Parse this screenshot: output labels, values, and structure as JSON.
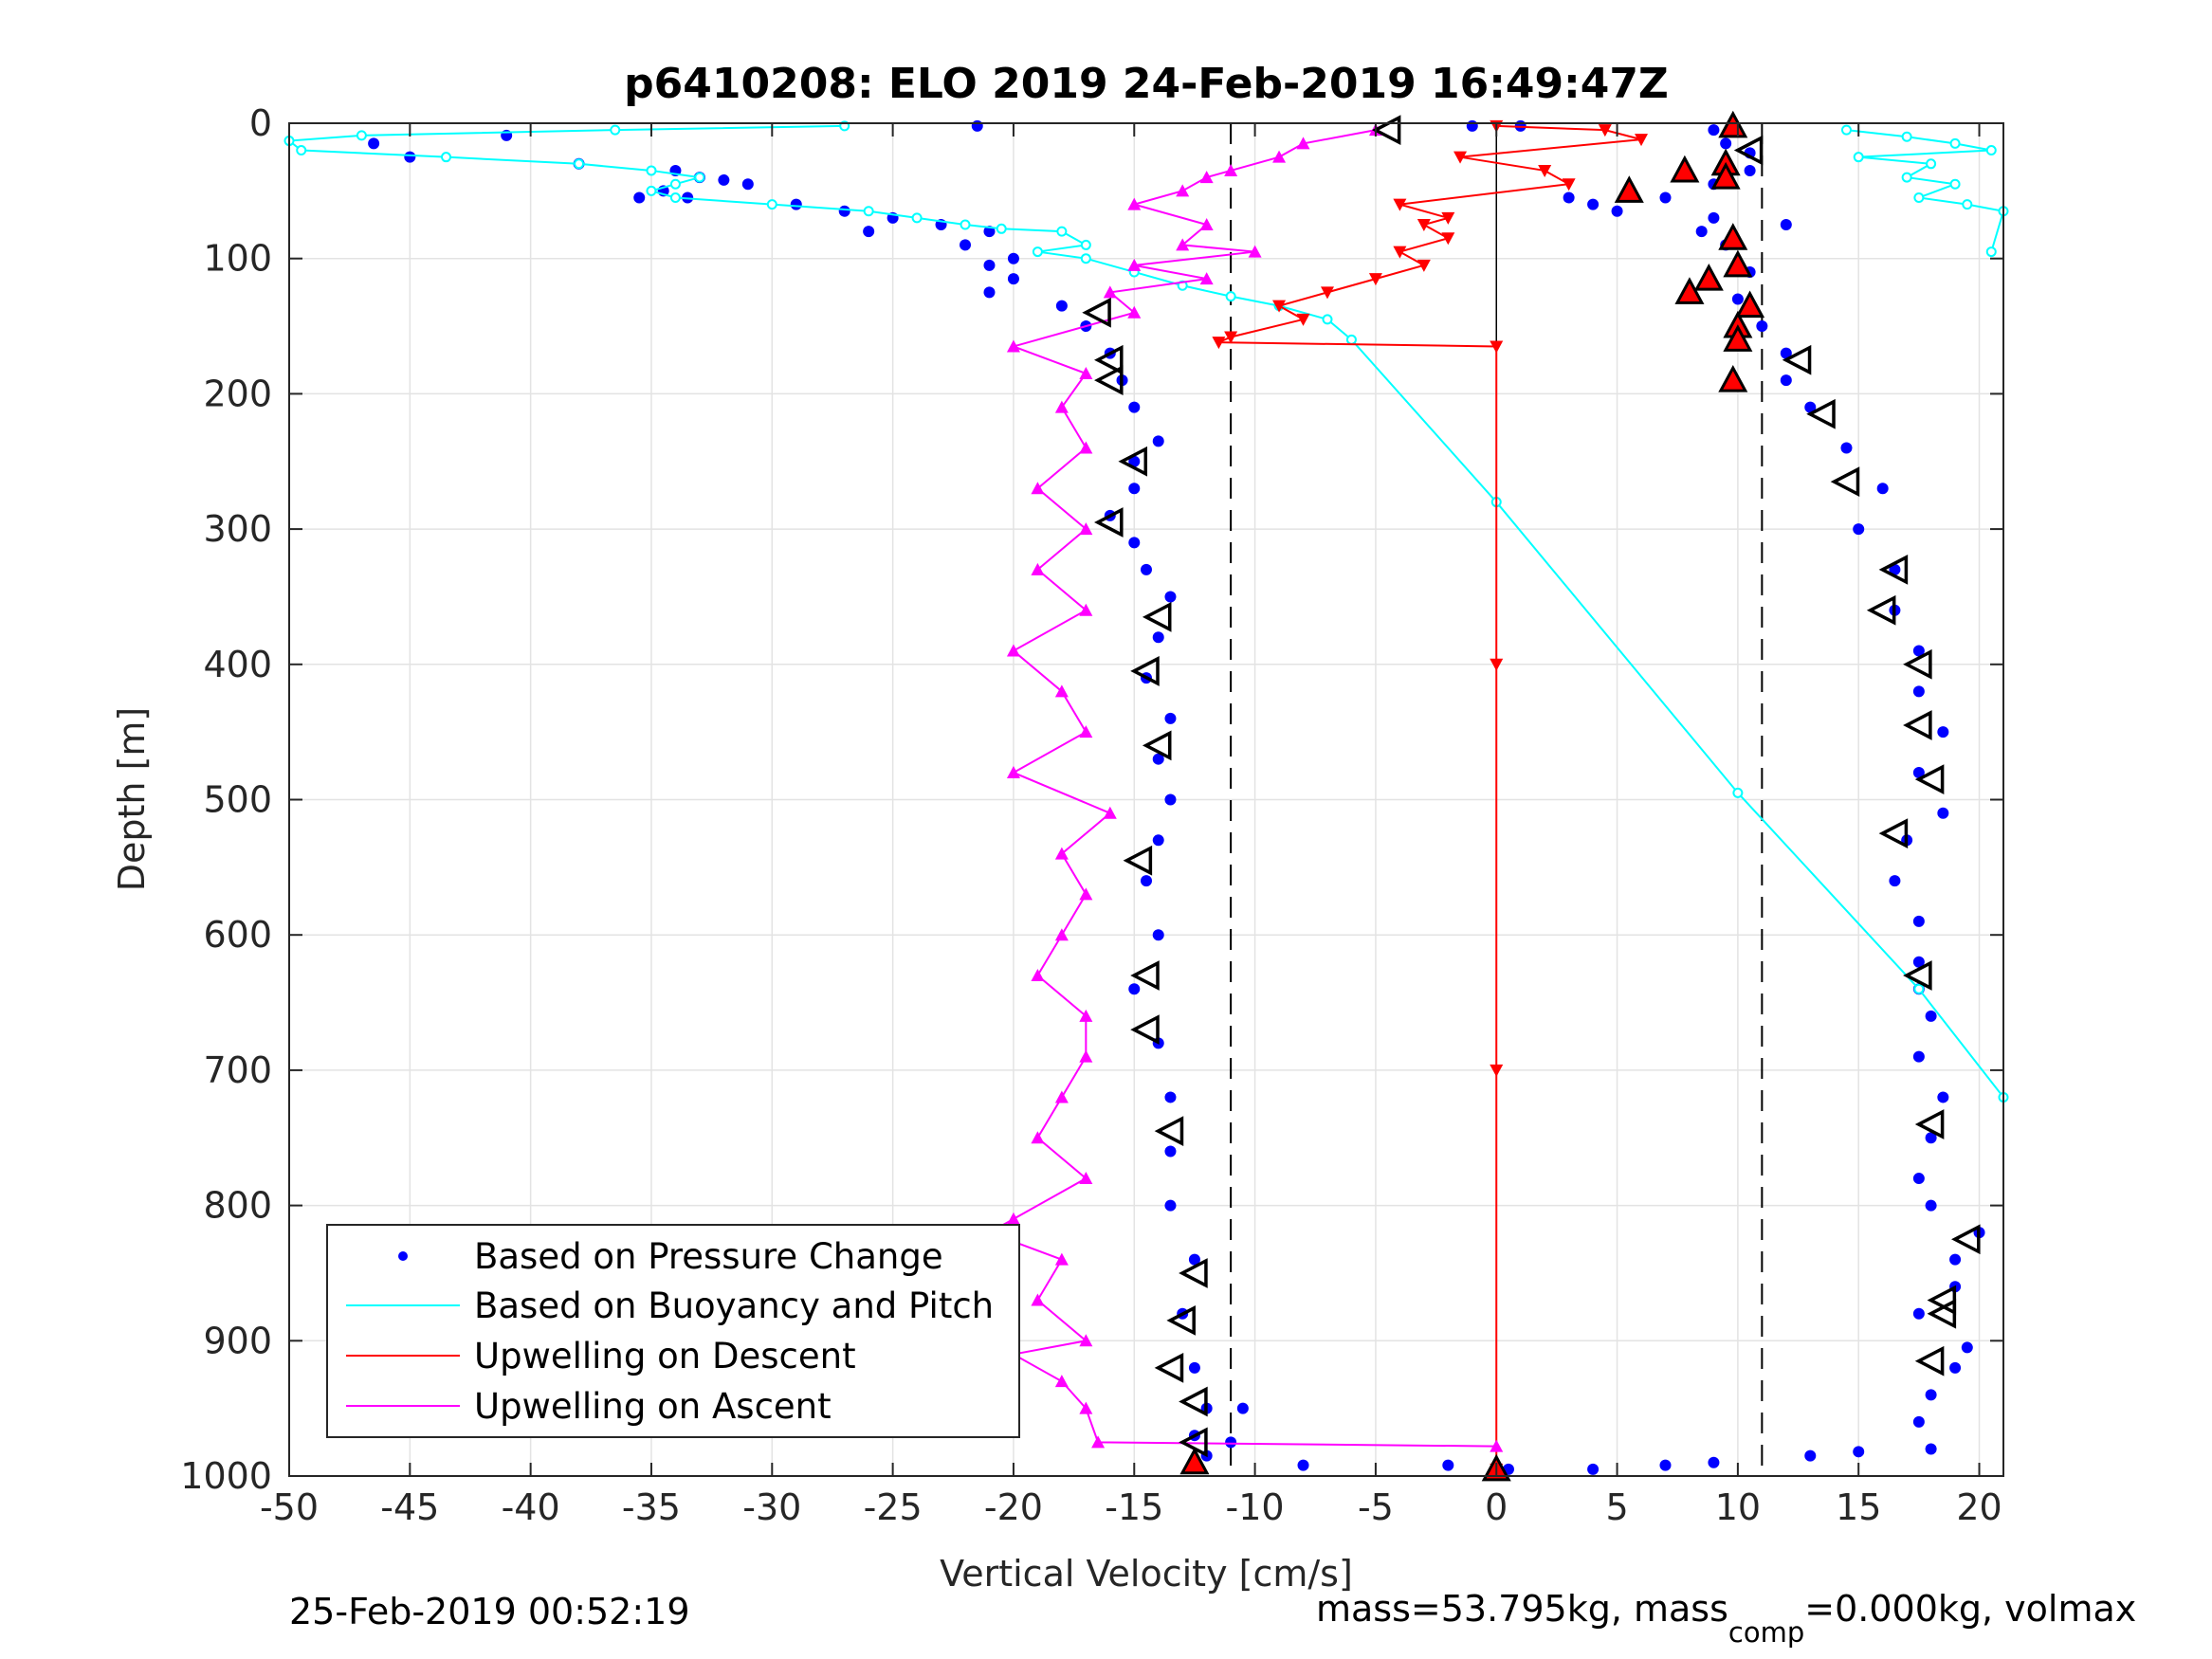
{
  "chart_data": {
    "type": "scatter",
    "title": "p6410208: ELO 2019 24-Feb-2019 16:49:47Z",
    "xlabel": "Vertical Velocity [cm/s]",
    "ylabel": "Depth [m]",
    "xlim": [
      -50,
      21
    ],
    "ylim": [
      0,
      1000
    ],
    "y_reversed": true,
    "grid": true,
    "x_ticks": [
      -50,
      -45,
      -40,
      -35,
      -30,
      -25,
      -20,
      -15,
      -10,
      -5,
      0,
      5,
      10,
      15,
      20
    ],
    "y_ticks": [
      0,
      100,
      200,
      300,
      400,
      500,
      600,
      700,
      800,
      900,
      1000
    ],
    "x_tick_labels": [
      "-50",
      "-45",
      "-40",
      "-35",
      "-30",
      "-25",
      "-20",
      "-15",
      "-10",
      "-5",
      "0",
      "5",
      "10",
      "15",
      "20"
    ],
    "y_tick_labels": [
      "0",
      "100",
      "200",
      "300",
      "400",
      "500",
      "600",
      "700",
      "800",
      "900",
      "1000"
    ],
    "legend_position": "bottom-left",
    "reference_lines": {
      "dashed_x": [
        -11,
        11
      ],
      "solid_x": [
        0
      ]
    },
    "legend": [
      {
        "label": "Based on Pressure Change",
        "color": "#0000ff",
        "style": "dot"
      },
      {
        "label": "Based on Buoyancy and Pitch",
        "color": "#00ffff",
        "style": "line"
      },
      {
        "label": "Upwelling on Descent",
        "color": "#ff0000",
        "style": "line"
      },
      {
        "label": "Upwelling on Ascent",
        "color": "#ff00ff",
        "style": "line"
      }
    ],
    "series": [
      {
        "name": "Based on Pressure Change (descent)",
        "color": "#0000ff",
        "marker": "dot",
        "points": [
          [
            -21.5,
            2
          ],
          [
            -41,
            9
          ],
          [
            -46.5,
            15
          ],
          [
            -45,
            25
          ],
          [
            -38,
            30
          ],
          [
            -34,
            35
          ],
          [
            -33,
            40
          ],
          [
            -32,
            42
          ],
          [
            -31,
            45
          ],
          [
            -34.5,
            50
          ],
          [
            -33.5,
            55
          ],
          [
            -35.5,
            55
          ],
          [
            -29,
            60
          ],
          [
            -27,
            65
          ],
          [
            -25,
            70
          ],
          [
            -23,
            75
          ],
          [
            -26,
            80
          ],
          [
            -21,
            80
          ],
          [
            -22,
            90
          ],
          [
            -20,
            100
          ],
          [
            -21,
            105
          ],
          [
            -20,
            115
          ],
          [
            -21,
            125
          ],
          [
            -18,
            135
          ],
          [
            -17,
            150
          ],
          [
            -16,
            170
          ],
          [
            -15.5,
            190
          ],
          [
            -15,
            210
          ],
          [
            -14,
            235
          ],
          [
            -15,
            250
          ],
          [
            -15,
            270
          ],
          [
            -16,
            290
          ],
          [
            -15,
            310
          ],
          [
            -14.5,
            330
          ],
          [
            -13.5,
            350
          ],
          [
            -14,
            380
          ],
          [
            -14.5,
            410
          ],
          [
            -13.5,
            440
          ],
          [
            -14,
            470
          ],
          [
            -13.5,
            500
          ],
          [
            -14,
            530
          ],
          [
            -14.5,
            560
          ],
          [
            -14,
            600
          ],
          [
            -15,
            640
          ],
          [
            -14,
            680
          ],
          [
            -13.5,
            720
          ],
          [
            -13.5,
            760
          ],
          [
            -13.5,
            800
          ],
          [
            -12.5,
            840
          ],
          [
            -13,
            880
          ],
          [
            -12.5,
            920
          ],
          [
            -12,
            950
          ],
          [
            -12.5,
            970
          ],
          [
            -12,
            985
          ],
          [
            -11,
            975
          ],
          [
            -10.5,
            950
          ],
          [
            -8,
            992
          ],
          [
            -2,
            992
          ],
          [
            0.5,
            995
          ],
          [
            4,
            995
          ],
          [
            7,
            992
          ],
          [
            9,
            990
          ],
          [
            13,
            985
          ],
          [
            15,
            982
          ]
        ]
      },
      {
        "name": "Based on Pressure Change (ascent)",
        "color": "#0000ff",
        "marker": "dot",
        "points": [
          [
            18,
            980
          ],
          [
            17.5,
            960
          ],
          [
            18,
            940
          ],
          [
            19,
            920
          ],
          [
            19.5,
            905
          ],
          [
            17.5,
            880
          ],
          [
            19,
            860
          ],
          [
            19,
            840
          ],
          [
            20,
            820
          ],
          [
            18,
            800
          ],
          [
            17.5,
            780
          ],
          [
            18,
            750
          ],
          [
            18.5,
            720
          ],
          [
            17.5,
            690
          ],
          [
            18,
            660
          ],
          [
            17.5,
            640
          ],
          [
            17.5,
            620
          ],
          [
            17.5,
            590
          ],
          [
            16.5,
            560
          ],
          [
            17,
            530
          ],
          [
            18.5,
            510
          ],
          [
            17.5,
            480
          ],
          [
            18.5,
            450
          ],
          [
            17.5,
            420
          ],
          [
            17.5,
            390
          ],
          [
            16.5,
            360
          ],
          [
            16.5,
            330
          ],
          [
            15,
            300
          ],
          [
            16,
            270
          ],
          [
            14.5,
            240
          ],
          [
            13,
            210
          ],
          [
            12,
            190
          ],
          [
            12,
            170
          ],
          [
            11,
            150
          ],
          [
            10,
            130
          ],
          [
            10.5,
            110
          ],
          [
            9.5,
            90
          ],
          [
            8.5,
            80
          ],
          [
            12,
            75
          ],
          [
            9,
            70
          ],
          [
            5,
            65
          ],
          [
            4,
            60
          ],
          [
            3,
            55
          ],
          [
            7,
            55
          ],
          [
            9,
            45
          ],
          [
            10.5,
            35
          ],
          [
            10.5,
            22
          ],
          [
            9.5,
            15
          ],
          [
            9,
            5
          ],
          [
            1,
            2
          ],
          [
            -1,
            2
          ]
        ]
      },
      {
        "name": "Based on Buoyancy and Pitch (descent)",
        "color": "#00ffff",
        "marker": "circle-line",
        "points": [
          [
            -27,
            2
          ],
          [
            -36.5,
            5
          ],
          [
            -47,
            9
          ],
          [
            -50,
            13
          ],
          [
            -49.5,
            20
          ],
          [
            -43.5,
            25
          ],
          [
            -38,
            30
          ],
          [
            -35,
            35
          ],
          [
            -33,
            40
          ],
          [
            -34,
            45
          ],
          [
            -35,
            50
          ],
          [
            -34,
            55
          ],
          [
            -30,
            60
          ],
          [
            -26,
            65
          ],
          [
            -24,
            70
          ],
          [
            -22,
            75
          ],
          [
            -20.5,
            78
          ],
          [
            -18,
            80
          ],
          [
            -17,
            90
          ],
          [
            -19,
            95
          ],
          [
            -17,
            100
          ],
          [
            -15,
            110
          ],
          [
            -13,
            120
          ],
          [
            -11,
            128
          ],
          [
            -9,
            135
          ],
          [
            -7,
            145
          ],
          [
            -6,
            160
          ],
          [
            0,
            280
          ],
          [
            10,
            495
          ],
          [
            17.5,
            640
          ],
          [
            21,
            720
          ]
        ]
      },
      {
        "name": "Based on Buoyancy and Pitch (ascent)",
        "color": "#00ffff",
        "marker": "circle-line",
        "points": [
          [
            14.5,
            5
          ],
          [
            17,
            10
          ],
          [
            19,
            15
          ],
          [
            20.5,
            20
          ],
          [
            15,
            25
          ],
          [
            18,
            30
          ],
          [
            17,
            40
          ],
          [
            19,
            45
          ],
          [
            17.5,
            55
          ],
          [
            19.5,
            60
          ],
          [
            21,
            65
          ],
          [
            20.5,
            95
          ]
        ]
      },
      {
        "name": "Upwelling on Descent",
        "color": "#ff0000",
        "marker": "triangle-down",
        "points": [
          [
            0,
            2
          ],
          [
            4.5,
            5
          ],
          [
            6,
            12
          ],
          [
            -1.5,
            25
          ],
          [
            2,
            35
          ],
          [
            3,
            45
          ],
          [
            -4,
            60
          ],
          [
            -2,
            70
          ],
          [
            -3,
            75
          ],
          [
            -2,
            85
          ],
          [
            -4,
            95
          ],
          [
            -3,
            105
          ],
          [
            -5,
            115
          ],
          [
            -7,
            125
          ],
          [
            -9,
            135
          ],
          [
            -8,
            145
          ],
          [
            -11,
            158
          ],
          [
            -11.5,
            162
          ],
          [
            0,
            165
          ],
          [
            0,
            400
          ],
          [
            0,
            700
          ],
          [
            0,
            995
          ]
        ]
      },
      {
        "name": "Upwelling on Ascent",
        "color": "#ff00ff",
        "marker": "triangle-up",
        "points": [
          [
            -5,
            5
          ],
          [
            -8,
            15
          ],
          [
            -9,
            25
          ],
          [
            -11,
            35
          ],
          [
            -12,
            40
          ],
          [
            -13,
            50
          ],
          [
            -15,
            60
          ],
          [
            -12,
            75
          ],
          [
            -13,
            90
          ],
          [
            -10,
            95
          ],
          [
            -15,
            105
          ],
          [
            -12,
            115
          ],
          [
            -16,
            125
          ],
          [
            -15,
            140
          ],
          [
            -20,
            165
          ],
          [
            -17,
            185
          ],
          [
            -18,
            210
          ],
          [
            -17,
            240
          ],
          [
            -19,
            270
          ],
          [
            -17,
            300
          ],
          [
            -19,
            330
          ],
          [
            -17,
            360
          ],
          [
            -20,
            390
          ],
          [
            -18,
            420
          ],
          [
            -17,
            450
          ],
          [
            -20,
            480
          ],
          [
            -16,
            510
          ],
          [
            -18,
            540
          ],
          [
            -17,
            570
          ],
          [
            -18,
            600
          ],
          [
            -19,
            630
          ],
          [
            -17,
            660
          ],
          [
            -17,
            690
          ],
          [
            -18,
            720
          ],
          [
            -19,
            750
          ],
          [
            -17,
            780
          ],
          [
            -20,
            810
          ],
          [
            -21,
            820
          ],
          [
            -18,
            840
          ],
          [
            -19,
            870
          ],
          [
            -17,
            900
          ],
          [
            -20,
            910
          ],
          [
            -18,
            930
          ],
          [
            -17,
            950
          ],
          [
            -16.5,
            975
          ],
          [
            0,
            978
          ]
        ]
      },
      {
        "name": "Descent markers",
        "color": "#ff0000",
        "marker": "triangle-up-filled",
        "points": [
          [
            9.8,
            2
          ],
          [
            9.5,
            30
          ],
          [
            7.8,
            35
          ],
          [
            9.5,
            40
          ],
          [
            5.5,
            50
          ],
          [
            9.8,
            85
          ],
          [
            10,
            105
          ],
          [
            8.8,
            115
          ],
          [
            8,
            125
          ],
          [
            10.5,
            135
          ],
          [
            10,
            150
          ],
          [
            10,
            160
          ],
          [
            9.8,
            190
          ],
          [
            -12.5,
            990
          ],
          [
            0,
            995
          ]
        ]
      },
      {
        "name": "Ascent markers",
        "color": "#000000",
        "marker": "triangle-left-open",
        "points": [
          [
            -4.5,
            5
          ],
          [
            10.5,
            20
          ],
          [
            -16.5,
            140
          ],
          [
            -16,
            175
          ],
          [
            -16,
            190
          ],
          [
            -15,
            250
          ],
          [
            -16,
            295
          ],
          [
            -14,
            365
          ],
          [
            -14.5,
            405
          ],
          [
            -14,
            460
          ],
          [
            -14.8,
            545
          ],
          [
            -14.5,
            630
          ],
          [
            -14.5,
            670
          ],
          [
            -13.5,
            745
          ],
          [
            -12.5,
            850
          ],
          [
            -13,
            885
          ],
          [
            -13.5,
            920
          ],
          [
            -12.5,
            945
          ],
          [
            -12.5,
            975
          ],
          [
            12.5,
            175
          ],
          [
            13.5,
            215
          ],
          [
            14.5,
            265
          ],
          [
            16.5,
            330
          ],
          [
            16,
            360
          ],
          [
            17.5,
            400
          ],
          [
            17.5,
            445
          ],
          [
            18,
            485
          ],
          [
            16.5,
            525
          ],
          [
            17.5,
            630
          ],
          [
            18,
            740
          ],
          [
            19.5,
            825
          ],
          [
            18.5,
            870
          ],
          [
            18.5,
            880
          ],
          [
            18,
            915
          ]
        ]
      }
    ]
  },
  "footer": {
    "left_timestamp": "25-Feb-2019 00:52:19",
    "mass_label": "mass=53.795kg, mass",
    "mass_subscript": "comp",
    "mass_rest": "=0.000kg, volmax"
  }
}
